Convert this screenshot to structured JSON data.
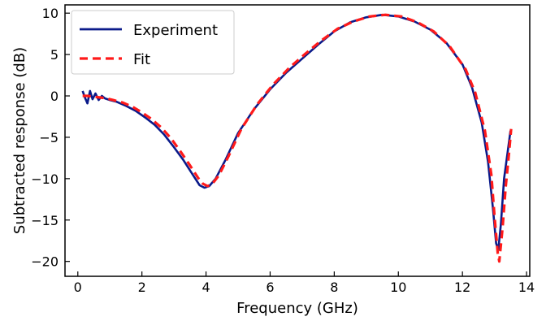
{
  "chart_data": {
    "type": "line",
    "title": "",
    "xlabel": "Frequency (GHz)",
    "ylabel": "Subtracted response (dB)",
    "xlim": [
      -0.4,
      14.1
    ],
    "ylim": [
      -21.8,
      11
    ],
    "xticks": [
      0,
      2,
      4,
      6,
      8,
      10,
      12,
      14
    ],
    "yticks": [
      10,
      5,
      0,
      -5,
      -10,
      -15,
      -20
    ],
    "grid": false,
    "legend_position": "top-left",
    "series": [
      {
        "name": "Experiment",
        "color": "#0a1a8a",
        "style": "solid",
        "x": [
          0.15,
          0.22,
          0.3,
          0.38,
          0.46,
          0.55,
          0.65,
          0.75,
          0.85,
          1.0,
          1.2,
          1.5,
          1.8,
          2.1,
          2.4,
          2.7,
          3.0,
          3.3,
          3.6,
          3.8,
          3.95,
          4.1,
          4.3,
          4.6,
          5.0,
          5.5,
          6.0,
          6.5,
          7.0,
          7.5,
          8.0,
          8.5,
          9.0,
          9.5,
          10.0,
          10.5,
          11.0,
          11.5,
          12.0,
          12.3,
          12.6,
          12.8,
          12.95,
          13.05,
          13.12,
          13.2,
          13.3,
          13.42,
          13.5
        ],
        "y": [
          0.6,
          -0.2,
          -0.9,
          0.6,
          -0.4,
          0.3,
          -0.5,
          0.0,
          -0.3,
          -0.5,
          -0.7,
          -1.2,
          -1.8,
          -2.6,
          -3.5,
          -4.7,
          -6.2,
          -7.8,
          -9.6,
          -10.8,
          -11.1,
          -10.9,
          -10.0,
          -7.8,
          -4.5,
          -1.6,
          0.8,
          2.8,
          4.5,
          6.2,
          7.8,
          8.9,
          9.5,
          9.8,
          9.6,
          9.0,
          8.0,
          6.4,
          3.8,
          1.0,
          -3.2,
          -8.0,
          -13.5,
          -17.8,
          -18.6,
          -15.5,
          -10.0,
          -6.5,
          -4.2
        ]
      },
      {
        "name": "Fit",
        "color": "#ff1a1a",
        "style": "dashed",
        "x": [
          0.15,
          0.3,
          0.5,
          0.7,
          0.9,
          1.1,
          1.4,
          1.7,
          2.0,
          2.3,
          2.6,
          2.9,
          3.2,
          3.5,
          3.75,
          3.9,
          4.05,
          4.2,
          4.4,
          4.7,
          5.1,
          5.6,
          6.1,
          6.6,
          7.1,
          7.6,
          8.1,
          8.6,
          9.1,
          9.6,
          10.1,
          10.6,
          11.1,
          11.6,
          12.1,
          12.4,
          12.7,
          12.9,
          13.0,
          13.1,
          13.15,
          13.25,
          13.35,
          13.45,
          13.52
        ],
        "y": [
          0.0,
          0.0,
          -0.1,
          -0.2,
          -0.3,
          -0.5,
          -0.8,
          -1.3,
          -2.0,
          -2.8,
          -3.8,
          -5.1,
          -6.7,
          -8.4,
          -9.9,
          -10.6,
          -10.9,
          -10.6,
          -9.6,
          -7.3,
          -4.0,
          -1.0,
          1.4,
          3.4,
          5.1,
          6.7,
          8.1,
          9.0,
          9.6,
          9.8,
          9.6,
          8.9,
          7.8,
          6.0,
          3.2,
          0.4,
          -4.2,
          -9.5,
          -14.5,
          -19.0,
          -20.0,
          -16.0,
          -11.0,
          -7.0,
          -4.0
        ]
      }
    ]
  }
}
